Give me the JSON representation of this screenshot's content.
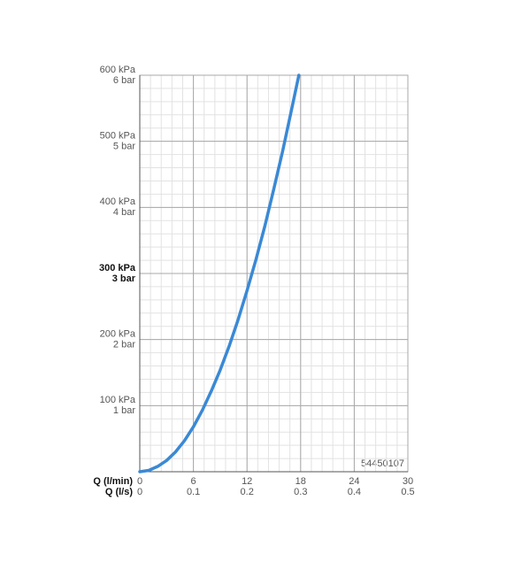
{
  "chart_data": {
    "type": "line",
    "x": [
      0,
      1,
      2,
      3,
      4,
      5,
      6,
      7,
      8,
      9,
      10,
      11,
      12,
      13,
      14,
      15,
      16,
      17,
      17.8
    ],
    "values": [
      0,
      2,
      8,
      17,
      30,
      47,
      68,
      93,
      122,
      154,
      190,
      230,
      274,
      321,
      372,
      428,
      486,
      549,
      600
    ],
    "color": "#3a89d5",
    "xlabel": "Q (l/min)",
    "x2label": "Q (l/s)",
    "xlim": [
      0,
      30
    ],
    "xticks": [
      0,
      6,
      12,
      18,
      24,
      30
    ],
    "x2lim": [
      0,
      0.5
    ],
    "x2ticks": [
      0,
      0.1,
      0.2,
      0.3,
      0.4,
      0.5
    ],
    "ylim": [
      0,
      600
    ],
    "yticks": [
      {
        "value": 100,
        "label": "100 kPa"
      },
      {
        "value": 200,
        "label": "200 kPa"
      },
      {
        "value": 300,
        "label": "300 kPa",
        "bold": true
      },
      {
        "value": 400,
        "label": "400 kPa"
      },
      {
        "value": 500,
        "label": "500 kPa"
      },
      {
        "value": 600,
        "label": "600 kPa"
      }
    ],
    "y2lim": [
      0,
      6
    ],
    "y2ticks": [
      {
        "value": 1,
        "label": "1 bar"
      },
      {
        "value": 2,
        "label": "2 bar"
      },
      {
        "value": 3,
        "label": "3 bar",
        "bold": true
      },
      {
        "value": 4,
        "label": "4 bar"
      },
      {
        "value": 5,
        "label": "5 bar"
      },
      {
        "value": 6,
        "label": "6 bar"
      }
    ],
    "grid": true,
    "minor_grid": true,
    "annotation": "54450107"
  }
}
